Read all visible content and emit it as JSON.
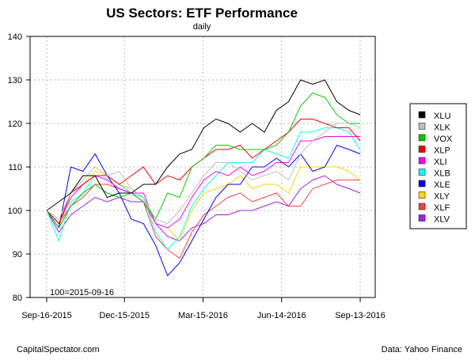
{
  "chart_data": {
    "type": "line",
    "title": "US Sectors: ETF Performance",
    "subtitle": "daily",
    "annotation": "100=2015-09-16",
    "xlabel": "",
    "ylabel": "",
    "ylim": [
      80,
      140
    ],
    "yticks": [
      80,
      90,
      100,
      110,
      120,
      130,
      140
    ],
    "x_unit": "days since 2015-09-16",
    "xlim": [
      0,
      363
    ],
    "xticks": [
      {
        "day": 0,
        "label": "Sep-16-2015"
      },
      {
        "day": 90,
        "label": "Dec-15-2015"
      },
      {
        "day": 181,
        "label": "Mar-15-2016"
      },
      {
        "day": 272,
        "label": "Jun-14-2016"
      },
      {
        "day": 363,
        "label": "Sep-13-2016"
      }
    ],
    "grid": true,
    "legend_position": "right",
    "x": [
      0,
      14,
      28,
      42,
      56,
      70,
      84,
      98,
      112,
      126,
      140,
      154,
      168,
      182,
      196,
      210,
      224,
      238,
      252,
      266,
      280,
      294,
      308,
      322,
      336,
      350,
      363
    ],
    "series": [
      {
        "name": "XLU",
        "color": "#000000",
        "values": [
          100,
          102,
          104,
          108,
          108,
          103,
          104,
          104,
          106,
          106,
          110,
          113,
          114,
          119,
          121,
          120,
          118,
          120,
          118,
          123,
          125,
          130,
          129,
          130,
          125,
          123,
          122
        ]
      },
      {
        "name": "XLK",
        "color": "#BEBEBE",
        "values": [
          100,
          98,
          104,
          107,
          110,
          108,
          109,
          105,
          103,
          98,
          97,
          100,
          104,
          108,
          111,
          111,
          109,
          107,
          108,
          109,
          107,
          113,
          116,
          118,
          120,
          120,
          119
        ]
      },
      {
        "name": "VOX",
        "color": "#00CD00",
        "values": [
          100,
          96,
          101,
          104,
          106,
          104,
          103,
          104,
          102,
          98,
          104,
          103,
          110,
          112,
          115,
          115,
          114,
          114,
          114,
          115,
          118,
          124,
          127,
          126,
          122,
          120,
          120
        ]
      },
      {
        "name": "XLP",
        "color": "#FF0000",
        "values": [
          100,
          97,
          104,
          106,
          108,
          108,
          106,
          108,
          110,
          106,
          108,
          107,
          110,
          112,
          114,
          114,
          115,
          112,
          114,
          116,
          118,
          121,
          121,
          120,
          119,
          119,
          116
        ]
      },
      {
        "name": "XLI",
        "color": "#FF00FF",
        "values": [
          100,
          97,
          103,
          106,
          108,
          107,
          105,
          104,
          104,
          97,
          96,
          98,
          103,
          107,
          109,
          108,
          110,
          108,
          109,
          111,
          111,
          116,
          116,
          117,
          117,
          117,
          117
        ]
      },
      {
        "name": "XLB",
        "color": "#00FFFF",
        "values": [
          100,
          93,
          102,
          104,
          108,
          108,
          106,
          104,
          103,
          95,
          91,
          94,
          101,
          105,
          108,
          111,
          111,
          111,
          114,
          113,
          112,
          118,
          118,
          119,
          119,
          118,
          114
        ]
      },
      {
        "name": "XLE",
        "color": "#0000FF",
        "values": [
          100,
          96,
          110,
          109,
          113,
          108,
          104,
          98,
          97,
          92,
          85,
          88,
          93,
          98,
          103,
          106,
          106,
          110,
          110,
          112,
          110,
          113,
          109,
          110,
          115,
          114,
          113
        ]
      },
      {
        "name": "XLY",
        "color": "#FFD700",
        "values": [
          100,
          96,
          104,
          106,
          109,
          108,
          106,
          105,
          103,
          97,
          96,
          93,
          100,
          104,
          105,
          106,
          108,
          105,
          106,
          106,
          104,
          110,
          110,
          110,
          110,
          109,
          107
        ]
      },
      {
        "name": "XLF",
        "color": "#FF4040",
        "values": [
          100,
          97,
          101,
          103,
          106,
          106,
          105,
          104,
          102,
          94,
          91,
          89,
          95,
          99,
          101,
          103,
          104,
          102,
          103,
          104,
          101,
          101,
          105,
          106,
          107,
          107,
          107
        ]
      },
      {
        "name": "XLV",
        "color": "#A020F0",
        "values": [
          100,
          95,
          99,
          101,
          103,
          102,
          103,
          102,
          102,
          97,
          94,
          93,
          96,
          97,
          99,
          99,
          100,
          100,
          101,
          102,
          101,
          105,
          107,
          108,
          106,
          105,
          104
        ]
      }
    ]
  },
  "footer": {
    "source_left": "CapitalSpectator.com",
    "source_right": "Data: Yahoo Finance"
  }
}
